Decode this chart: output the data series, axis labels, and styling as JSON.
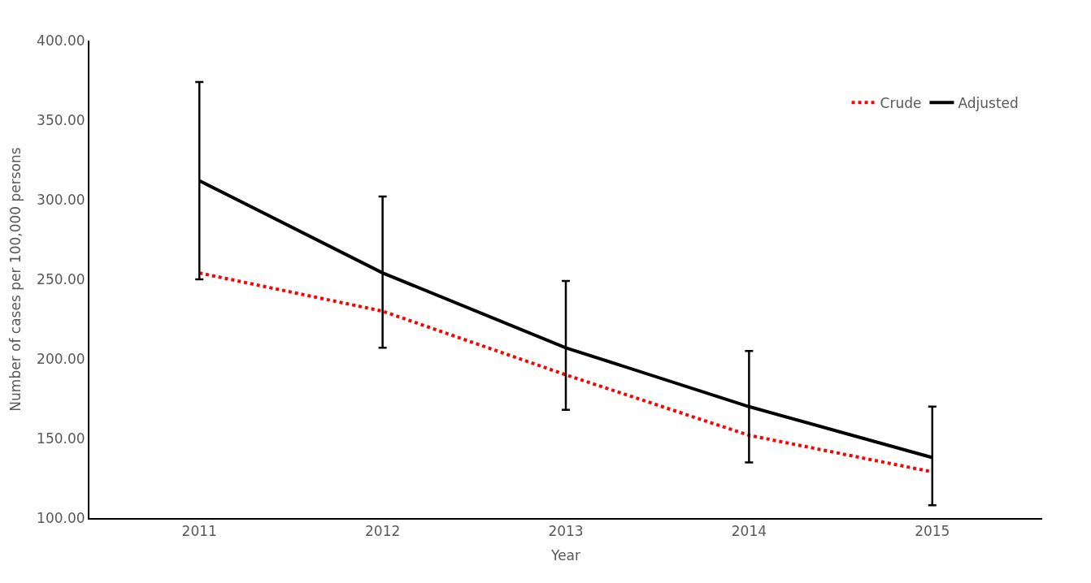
{
  "chart_data": {
    "type": "line",
    "xlabel": "Year",
    "ylabel": "Number of cases per 100,000 persons",
    "categories": [
      "2011",
      "2012",
      "2013",
      "2014",
      "2015"
    ],
    "series": [
      {
        "name": "Crude",
        "color": "#ff0000",
        "line_style": "dotted",
        "values": [
          254,
          230,
          190,
          152,
          129
        ]
      },
      {
        "name": "Adjusted",
        "color": "#000000",
        "line_style": "solid",
        "values": [
          312,
          254,
          207,
          170,
          138
        ],
        "errors": [
          [
            250,
            374
          ],
          [
            207,
            302
          ],
          [
            168,
            249
          ],
          [
            135,
            205
          ],
          [
            108,
            170
          ]
        ]
      }
    ],
    "ylim": [
      100,
      400
    ],
    "yticks": [
      {
        "value": 100,
        "label": "100.00"
      },
      {
        "value": 150,
        "label": "150.00"
      },
      {
        "value": 200,
        "label": "200.00"
      },
      {
        "value": 250,
        "label": "250.00"
      },
      {
        "value": 300,
        "label": "300.00"
      },
      {
        "value": 350,
        "label": "350.00"
      },
      {
        "value": 400,
        "label": "400.00"
      }
    ],
    "grid": false,
    "legend": "top right",
    "marker": "none"
  }
}
